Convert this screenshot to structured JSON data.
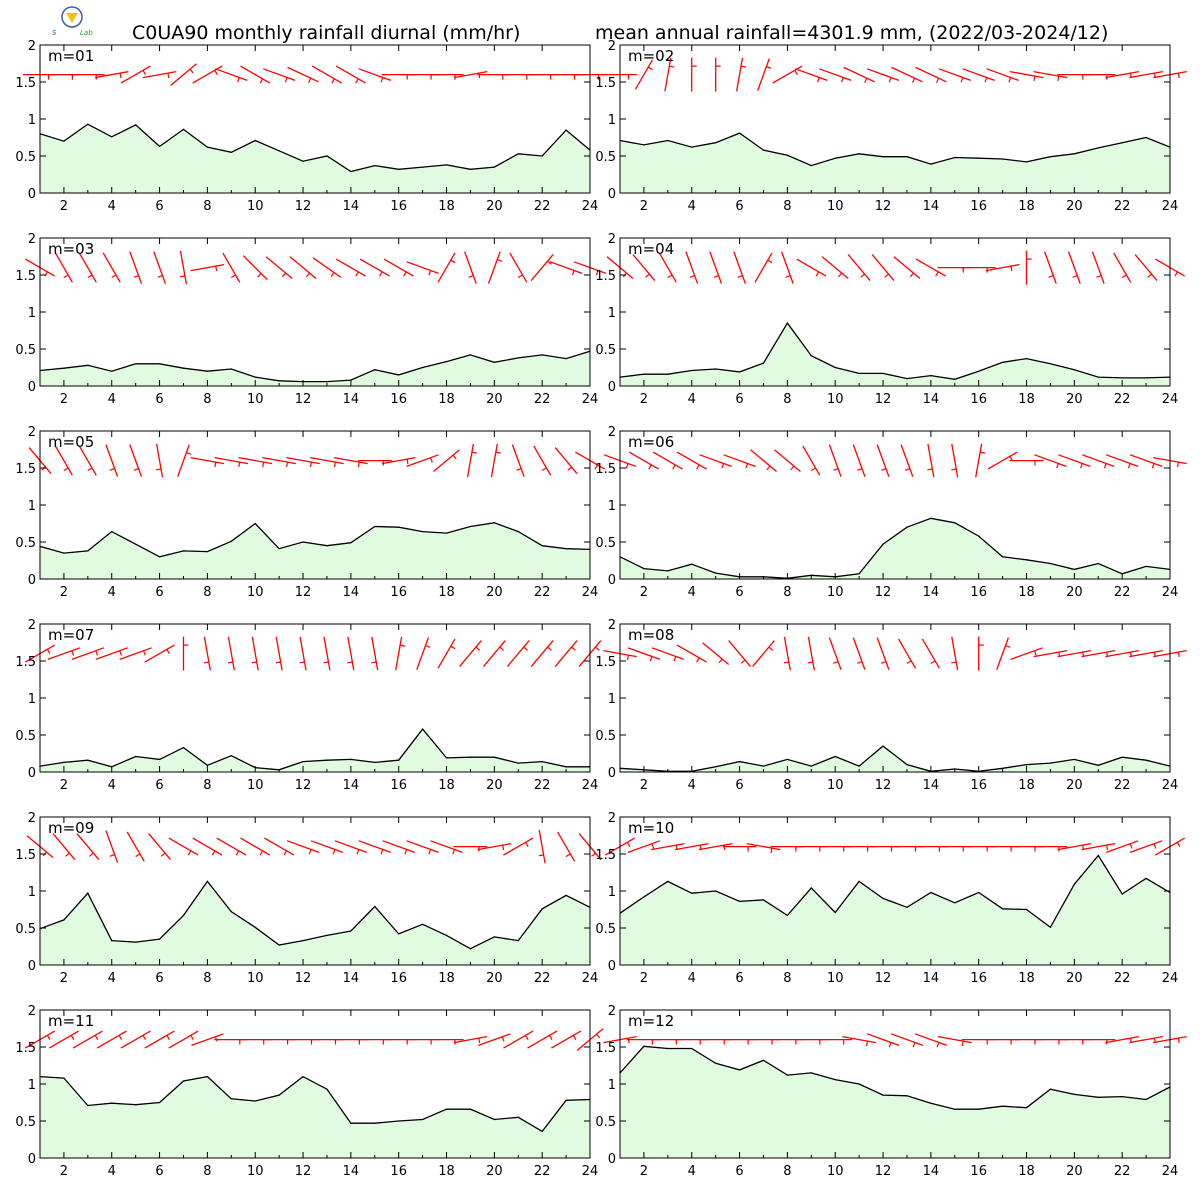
{
  "figure": {
    "title_left": "C0UA90 monthly rainfall diurnal (mm/hr)",
    "title_right": "mean annual rainfall=4301.9 mm, (2022/03-2024/12)"
  },
  "logo": {
    "text_s": "S",
    "text_lab": "Lab"
  },
  "colors": {
    "fill": "#e0fbe0",
    "line": "#000000",
    "wind": "#ff0000",
    "axes": "#000000"
  },
  "chart_data": {
    "type": "area",
    "x_ticks": [
      2,
      4,
      6,
      8,
      10,
      12,
      14,
      16,
      18,
      20,
      22,
      24
    ],
    "y_ticks": [
      0,
      0.5,
      1,
      1.5,
      2
    ],
    "y_tick_labels": [
      "0",
      "0.5",
      "1",
      "1.5",
      "2"
    ],
    "xlim": [
      1,
      24
    ],
    "ylim": [
      0,
      2
    ],
    "x": [
      1,
      2,
      3,
      4,
      5,
      6,
      7,
      8,
      9,
      10,
      11,
      12,
      13,
      14,
      15,
      16,
      17,
      18,
      19,
      20,
      21,
      22,
      23,
      24
    ],
    "wind_barbs_shown": true,
    "panels": [
      {
        "label": "m=01",
        "values": [
          0.8,
          0.7,
          0.93,
          0.76,
          0.92,
          0.63,
          0.86,
          0.62,
          0.55,
          0.71,
          0.57,
          0.43,
          0.5,
          0.29,
          0.37,
          0.32,
          0.35,
          0.38,
          0.32,
          0.35,
          0.53,
          0.5,
          0.85,
          0.58
        ],
        "wind_dir": [
          90,
          90,
          90,
          80,
          60,
          80,
          50,
          60,
          110,
          120,
          110,
          115,
          120,
          120,
          110,
          90,
          90,
          90,
          80,
          90,
          90,
          90,
          90,
          90
        ]
      },
      {
        "label": "m=02",
        "values": [
          0.71,
          0.65,
          0.71,
          0.62,
          0.68,
          0.81,
          0.58,
          0.51,
          0.37,
          0.47,
          0.53,
          0.49,
          0.49,
          0.39,
          0.48,
          0.47,
          0.46,
          0.42,
          0.49,
          0.53,
          0.61,
          0.68,
          0.75,
          0.62
        ],
        "wind_dir": [
          90,
          30,
          10,
          0,
          0,
          10,
          20,
          60,
          110,
          110,
          115,
          110,
          115,
          115,
          110,
          110,
          110,
          100,
          100,
          90,
          90,
          80,
          80,
          80
        ]
      },
      {
        "label": "m=03",
        "values": [
          0.21,
          0.24,
          0.28,
          0.2,
          0.3,
          0.3,
          0.24,
          0.2,
          0.23,
          0.12,
          0.07,
          0.06,
          0.06,
          0.08,
          0.22,
          0.15,
          0.25,
          0.33,
          0.42,
          0.32,
          0.38,
          0.42,
          0.37,
          0.47
        ],
        "wind_dir": [
          120,
          150,
          150,
          150,
          160,
          160,
          170,
          80,
          150,
          135,
          130,
          130,
          125,
          120,
          120,
          120,
          110,
          30,
          160,
          20,
          150,
          40,
          110,
          110
        ]
      },
      {
        "label": "m=04",
        "values": [
          0.12,
          0.16,
          0.16,
          0.21,
          0.23,
          0.19,
          0.31,
          0.85,
          0.41,
          0.25,
          0.17,
          0.17,
          0.1,
          0.14,
          0.09,
          0.2,
          0.32,
          0.37,
          0.3,
          0.22,
          0.12,
          0.11,
          0.11,
          0.12
        ],
        "wind_dir": [
          130,
          140,
          150,
          160,
          160,
          160,
          30,
          160,
          120,
          130,
          140,
          140,
          130,
          120,
          90,
          90,
          80,
          0,
          160,
          160,
          160,
          150,
          140,
          120
        ]
      },
      {
        "label": "m=05",
        "values": [
          0.44,
          0.35,
          0.38,
          0.64,
          0.47,
          0.3,
          0.38,
          0.37,
          0.51,
          0.75,
          0.41,
          0.5,
          0.45,
          0.49,
          0.71,
          0.7,
          0.64,
          0.62,
          0.71,
          0.76,
          0.64,
          0.45,
          0.41,
          0.4
        ],
        "wind_dir": [
          140,
          150,
          150,
          160,
          160,
          170,
          20,
          100,
          100,
          100,
          100,
          100,
          100,
          100,
          90,
          80,
          70,
          50,
          10,
          10,
          160,
          150,
          140,
          120
        ]
      },
      {
        "label": "m=06",
        "values": [
          0.3,
          0.14,
          0.11,
          0.2,
          0.08,
          0.03,
          0.03,
          0.01,
          0.05,
          0.03,
          0.07,
          0.47,
          0.7,
          0.82,
          0.76,
          0.58,
          0.3,
          0.26,
          0.21,
          0.13,
          0.21,
          0.07,
          0.17,
          0.13
        ],
        "wind_dir": [
          110,
          120,
          120,
          120,
          110,
          110,
          130,
          130,
          150,
          160,
          160,
          160,
          160,
          170,
          170,
          10,
          60,
          90,
          110,
          110,
          110,
          110,
          110,
          100
        ]
      },
      {
        "label": "m=07",
        "values": [
          0.08,
          0.13,
          0.16,
          0.07,
          0.21,
          0.17,
          0.33,
          0.09,
          0.22,
          0.06,
          0.03,
          0.14,
          0.16,
          0.17,
          0.13,
          0.16,
          0.58,
          0.19,
          0.2,
          0.2,
          0.12,
          0.14,
          0.07,
          0.07
        ],
        "wind_dir": [
          60,
          70,
          70,
          70,
          70,
          60,
          0,
          170,
          170,
          170,
          170,
          170,
          170,
          170,
          170,
          10,
          20,
          30,
          40,
          40,
          40,
          40,
          40,
          40
        ],
        "wind_dir_note": ""
      },
      {
        "label": "m=08",
        "values": [
          0.05,
          0.03,
          0.01,
          0.01,
          0.07,
          0.14,
          0.08,
          0.17,
          0.08,
          0.21,
          0.08,
          0.35,
          0.1,
          0.01,
          0.04,
          0.01,
          0.05,
          0.1,
          0.12,
          0.17,
          0.09,
          0.2,
          0.16,
          0.08
        ],
        "wind_dir": [
          100,
          110,
          110,
          120,
          130,
          140,
          40,
          170,
          170,
          160,
          160,
          160,
          150,
          150,
          170,
          0,
          20,
          70,
          80,
          80,
          80,
          80,
          80,
          80
        ]
      },
      {
        "label": "m=09",
        "values": [
          0.49,
          0.61,
          0.97,
          0.33,
          0.31,
          0.35,
          0.67,
          1.13,
          0.72,
          0.51,
          0.27,
          0.33,
          0.4,
          0.46,
          0.79,
          0.42,
          0.55,
          0.4,
          0.22,
          0.38,
          0.33,
          0.76,
          0.94,
          0.78
        ],
        "wind_dir": [
          130,
          140,
          140,
          160,
          150,
          140,
          120,
          120,
          120,
          120,
          120,
          110,
          110,
          110,
          110,
          110,
          110,
          110,
          90,
          80,
          60,
          170,
          150,
          140
        ]
      },
      {
        "label": "m=10",
        "values": [
          0.7,
          0.92,
          1.13,
          0.97,
          1.0,
          0.86,
          0.88,
          0.67,
          1.04,
          0.71,
          1.13,
          0.9,
          0.78,
          0.98,
          0.84,
          0.98,
          0.76,
          0.75,
          0.51,
          1.09,
          1.48,
          0.96,
          1.17,
          0.98
        ],
        "wind_dir": [
          60,
          70,
          80,
          80,
          80,
          90,
          100,
          90,
          90,
          90,
          90,
          90,
          90,
          90,
          90,
          90,
          90,
          90,
          90,
          80,
          80,
          70,
          70,
          60
        ]
      },
      {
        "label": "m=11",
        "values": [
          1.1,
          1.08,
          0.71,
          0.74,
          0.72,
          0.75,
          1.04,
          1.1,
          0.8,
          0.77,
          0.85,
          1.1,
          0.93,
          0.47,
          0.47,
          0.5,
          0.52,
          0.66,
          0.66,
          0.52,
          0.55,
          0.36,
          0.78,
          0.79
        ],
        "wind_dir": [
          60,
          60,
          60,
          60,
          60,
          60,
          60,
          70,
          90,
          90,
          90,
          90,
          90,
          90,
          90,
          90,
          90,
          90,
          80,
          70,
          60,
          60,
          60,
          50
        ]
      },
      {
        "label": "m=12",
        "values": [
          1.15,
          1.51,
          1.48,
          1.48,
          1.28,
          1.19,
          1.32,
          1.12,
          1.15,
          1.06,
          1.0,
          0.85,
          0.84,
          0.74,
          0.66,
          0.66,
          0.7,
          0.68,
          0.93,
          0.86,
          0.82,
          0.83,
          0.79,
          0.96
        ],
        "wind_dir": [
          80,
          90,
          90,
          90,
          90,
          90,
          90,
          90,
          90,
          90,
          100,
          110,
          110,
          110,
          100,
          90,
          90,
          90,
          90,
          90,
          90,
          80,
          80,
          80
        ]
      }
    ]
  }
}
